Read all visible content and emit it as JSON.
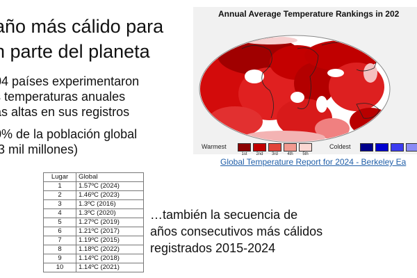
{
  "heading": {
    "line1": "año más cálido para",
    "line2": "n parte del planeta"
  },
  "bullets": [
    "04 países experimentaron",
    "s temperaturas anuales",
    "ás altas en sus registros",
    "0% de la población global",
    ".3 mil millones)"
  ],
  "map": {
    "title": "Annual Average Temperature Rankings in 202",
    "legend": {
      "warmest_label": "Warmest",
      "coldest_label": "Coldest",
      "warm_ranks": [
        "1st",
        "2nd",
        "3rd",
        "4th",
        "5th"
      ],
      "warm_colors": [
        "#8b0000",
        "#c20000",
        "#e2443a",
        "#f29a90",
        "#fbd8d3"
      ],
      "cold_colors": [
        "#00008b",
        "#0000d0",
        "#3c3cf0",
        "#8c8cf6"
      ]
    },
    "caption_link": "Global Temperature Report for 2024 - Berkeley Ea"
  },
  "table": {
    "headers": [
      "Lugar",
      "Global"
    ],
    "rows": [
      [
        "1",
        "1.57ºC (2024)"
      ],
      [
        "2",
        "1.46ºC (2023)"
      ],
      [
        "3",
        "1.3ºC (2016)"
      ],
      [
        "4",
        "1.3ºC (2020)"
      ],
      [
        "5",
        "1.27ºC (2019)"
      ],
      [
        "6",
        "1.21ºC (2017)"
      ],
      [
        "7",
        "1.19ºC (2015)"
      ],
      [
        "8",
        "1.18ºC (2022)"
      ],
      [
        "9",
        "1.14ºC (2018)"
      ],
      [
        "10",
        "1.14ºC (2021)"
      ]
    ]
  },
  "note": [
    "…también la secuencia de",
    "años consecutivos más cálidos",
    "registrados 2015-2024"
  ]
}
